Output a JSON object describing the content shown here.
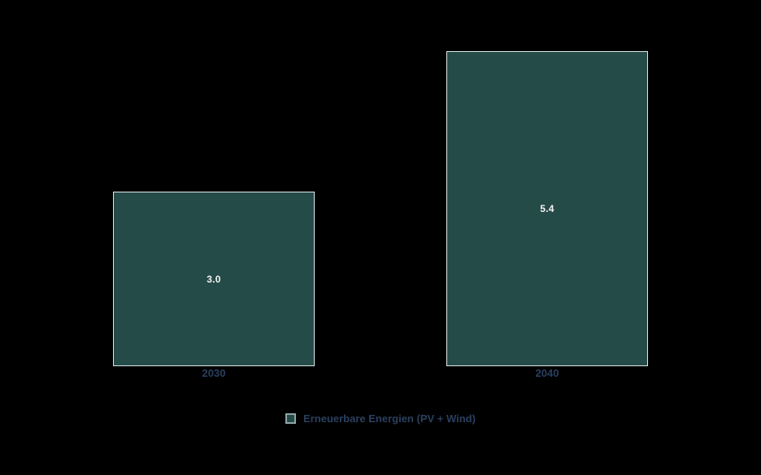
{
  "chart_data": {
    "type": "bar",
    "categories": [
      "2030",
      "2040"
    ],
    "series": [
      {
        "name": "Erneuerbare Energien (PV + Wind)",
        "values": [
          3.0,
          5.4
        ]
      }
    ],
    "bar_value_labels": [
      "3.0",
      "5.4"
    ],
    "title": "",
    "xlabel": "",
    "ylabel": "",
    "ylim": [
      0,
      6.3
    ],
    "grid": false,
    "axes_visible": false,
    "value_label_position": "inside-center",
    "legend_position": "bottom-center",
    "colors": {
      "background": "#000000",
      "bar_fill": "#254B48",
      "bar_border": "#DCE9EA",
      "value_label_text": "#F5F5F5",
      "tick_label_text": "#2A3F5F",
      "legend_text": "#2A3F5F",
      "legend_marker_fill": "#254B48",
      "legend_marker_border": "#8FA6A8"
    }
  },
  "bars": [
    {
      "category": "2030",
      "value": "3.0"
    },
    {
      "category": "2040",
      "value": "5.4"
    }
  ],
  "legend": {
    "label": "Erneuerbare Energien (PV + Wind)"
  }
}
